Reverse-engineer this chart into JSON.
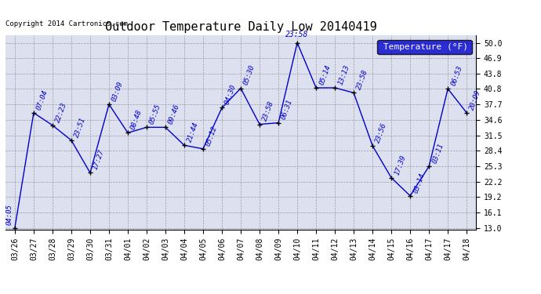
{
  "title": "Outdoor Temperature Daily Low 20140419",
  "copyright": "Copyright 2014 Cartronics.com",
  "legend_label": "Temperature (°F)",
  "x_labels": [
    "03/26",
    "03/27",
    "03/28",
    "03/29",
    "03/30",
    "03/31",
    "04/01",
    "04/02",
    "04/03",
    "04/04",
    "04/05",
    "04/06",
    "04/07",
    "04/08",
    "04/09",
    "04/10",
    "04/11",
    "04/12",
    "04/13",
    "04/14",
    "04/15",
    "04/16",
    "04/17",
    "04/18"
  ],
  "points": [
    [
      0,
      13.0,
      "04:05"
    ],
    [
      1,
      36.0,
      "07:04"
    ],
    [
      2,
      33.5,
      "22:23"
    ],
    [
      3,
      30.5,
      "23:51"
    ],
    [
      4,
      24.0,
      "17:27"
    ],
    [
      5,
      37.7,
      "03:09"
    ],
    [
      6,
      32.0,
      "08:48"
    ],
    [
      7,
      33.1,
      "05:55"
    ],
    [
      8,
      33.1,
      "09:46"
    ],
    [
      9,
      29.5,
      "21:44"
    ],
    [
      10,
      28.8,
      "05:12"
    ],
    [
      11,
      37.0,
      "04:30"
    ],
    [
      12,
      40.9,
      "05:30"
    ],
    [
      13,
      33.7,
      "23:58"
    ],
    [
      14,
      34.0,
      "06:31"
    ],
    [
      15,
      50.0,
      "23:58"
    ],
    [
      16,
      41.0,
      "05:14"
    ],
    [
      17,
      41.0,
      "13:13"
    ],
    [
      18,
      40.0,
      "23:58"
    ],
    [
      19,
      29.4,
      "23:56"
    ],
    [
      20,
      23.0,
      "17:39"
    ],
    [
      21,
      19.4,
      "03:14"
    ],
    [
      22,
      25.3,
      "03:11"
    ],
    [
      23,
      40.8,
      "06:53"
    ],
    [
      24,
      36.0,
      "20:09"
    ]
  ],
  "ylim_min": 13.0,
  "ylim_max": 50.0,
  "yticks": [
    13.0,
    16.1,
    19.2,
    22.2,
    25.3,
    28.4,
    31.5,
    34.6,
    37.7,
    40.8,
    43.8,
    46.9,
    50.0
  ],
  "line_color": "#0000cc",
  "bg_color": "#dde0ee",
  "title_fontsize": 11,
  "tick_fontsize": 7,
  "annot_fontsize": 6.5,
  "legend_fontsize": 8
}
